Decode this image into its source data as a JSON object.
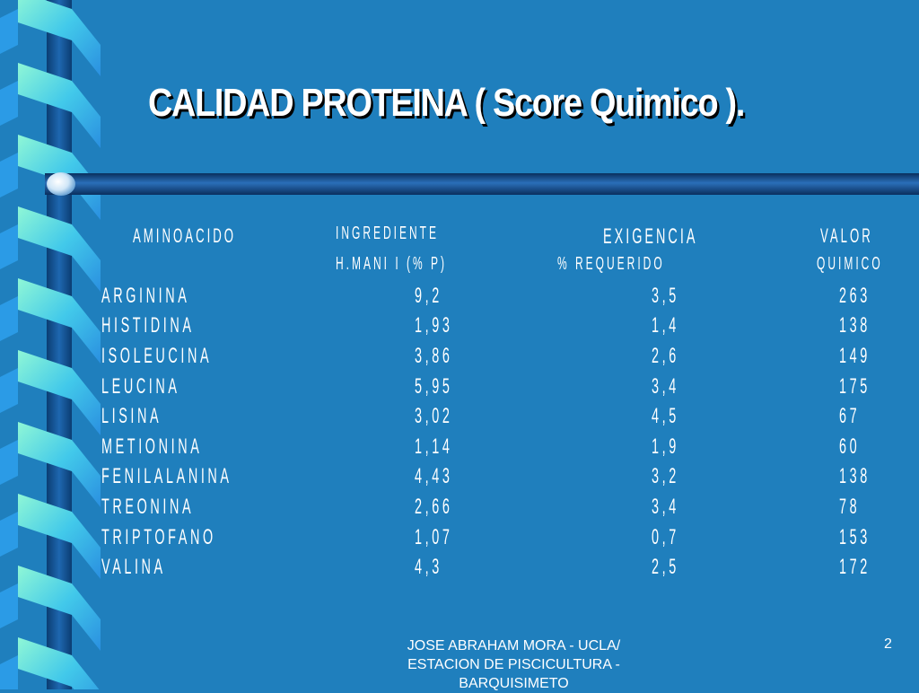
{
  "title": "CALIDAD PROTEINA ( Score Quimico ).",
  "headers": {
    "aminoacido": "AMINOACIDO",
    "ingrediente_1": "INGREDIENTE",
    "ingrediente_2": "H.MANI I (% P)",
    "exigencia_1": "EXIGENCIA",
    "exigencia_2": "% REQUERIDO",
    "valor_1": "VALOR",
    "valor_2": "QUIMICO"
  },
  "rows": [
    {
      "aminoacido": "ARGININA",
      "ingrediente": "9,2",
      "exigencia": "3,5",
      "valor": "263"
    },
    {
      "aminoacido": "HISTIDINA",
      "ingrediente": "1,93",
      "exigencia": "1,4",
      "valor": "138"
    },
    {
      "aminoacido": "ISOLEUCINA",
      "ingrediente": "3,86",
      "exigencia": "2,6",
      "valor": "149"
    },
    {
      "aminoacido": "LEUCINA",
      "ingrediente": "5,95",
      "exigencia": "3,4",
      "valor": "175"
    },
    {
      "aminoacido": "LISINA",
      "ingrediente": "3,02",
      "exigencia": "4,5",
      "valor": "67"
    },
    {
      "aminoacido": "METIONINA",
      "ingrediente": "1,14",
      "exigencia": "1,9",
      "valor": "60"
    },
    {
      "aminoacido": "FENILALANINA",
      "ingrediente": "4,43",
      "exigencia": "3,2",
      "valor": "138"
    },
    {
      "aminoacido": "TREONINA",
      "ingrediente": "2,66",
      "exigencia": "3,4",
      "valor": "78"
    },
    {
      "aminoacido": "TRIPTOFANO",
      "ingrediente": "1,07",
      "exigencia": "0,7",
      "valor": "153"
    },
    {
      "aminoacido": "VALINA",
      "ingrediente": "4,3",
      "exigencia": "2,5",
      "valor": "172"
    }
  ],
  "footer": {
    "line1": "JOSE ABRAHAM MORA - UCLA/",
    "line2": "ESTACION DE PISCICULTURA -",
    "line3": "BARQUISIMETO"
  },
  "page_number": "2",
  "colors": {
    "background": "#1f7fbd",
    "ribbon_light": "#7ef2cf",
    "ribbon_blue": "#3aa8f0",
    "bar": "#0f3f78"
  }
}
